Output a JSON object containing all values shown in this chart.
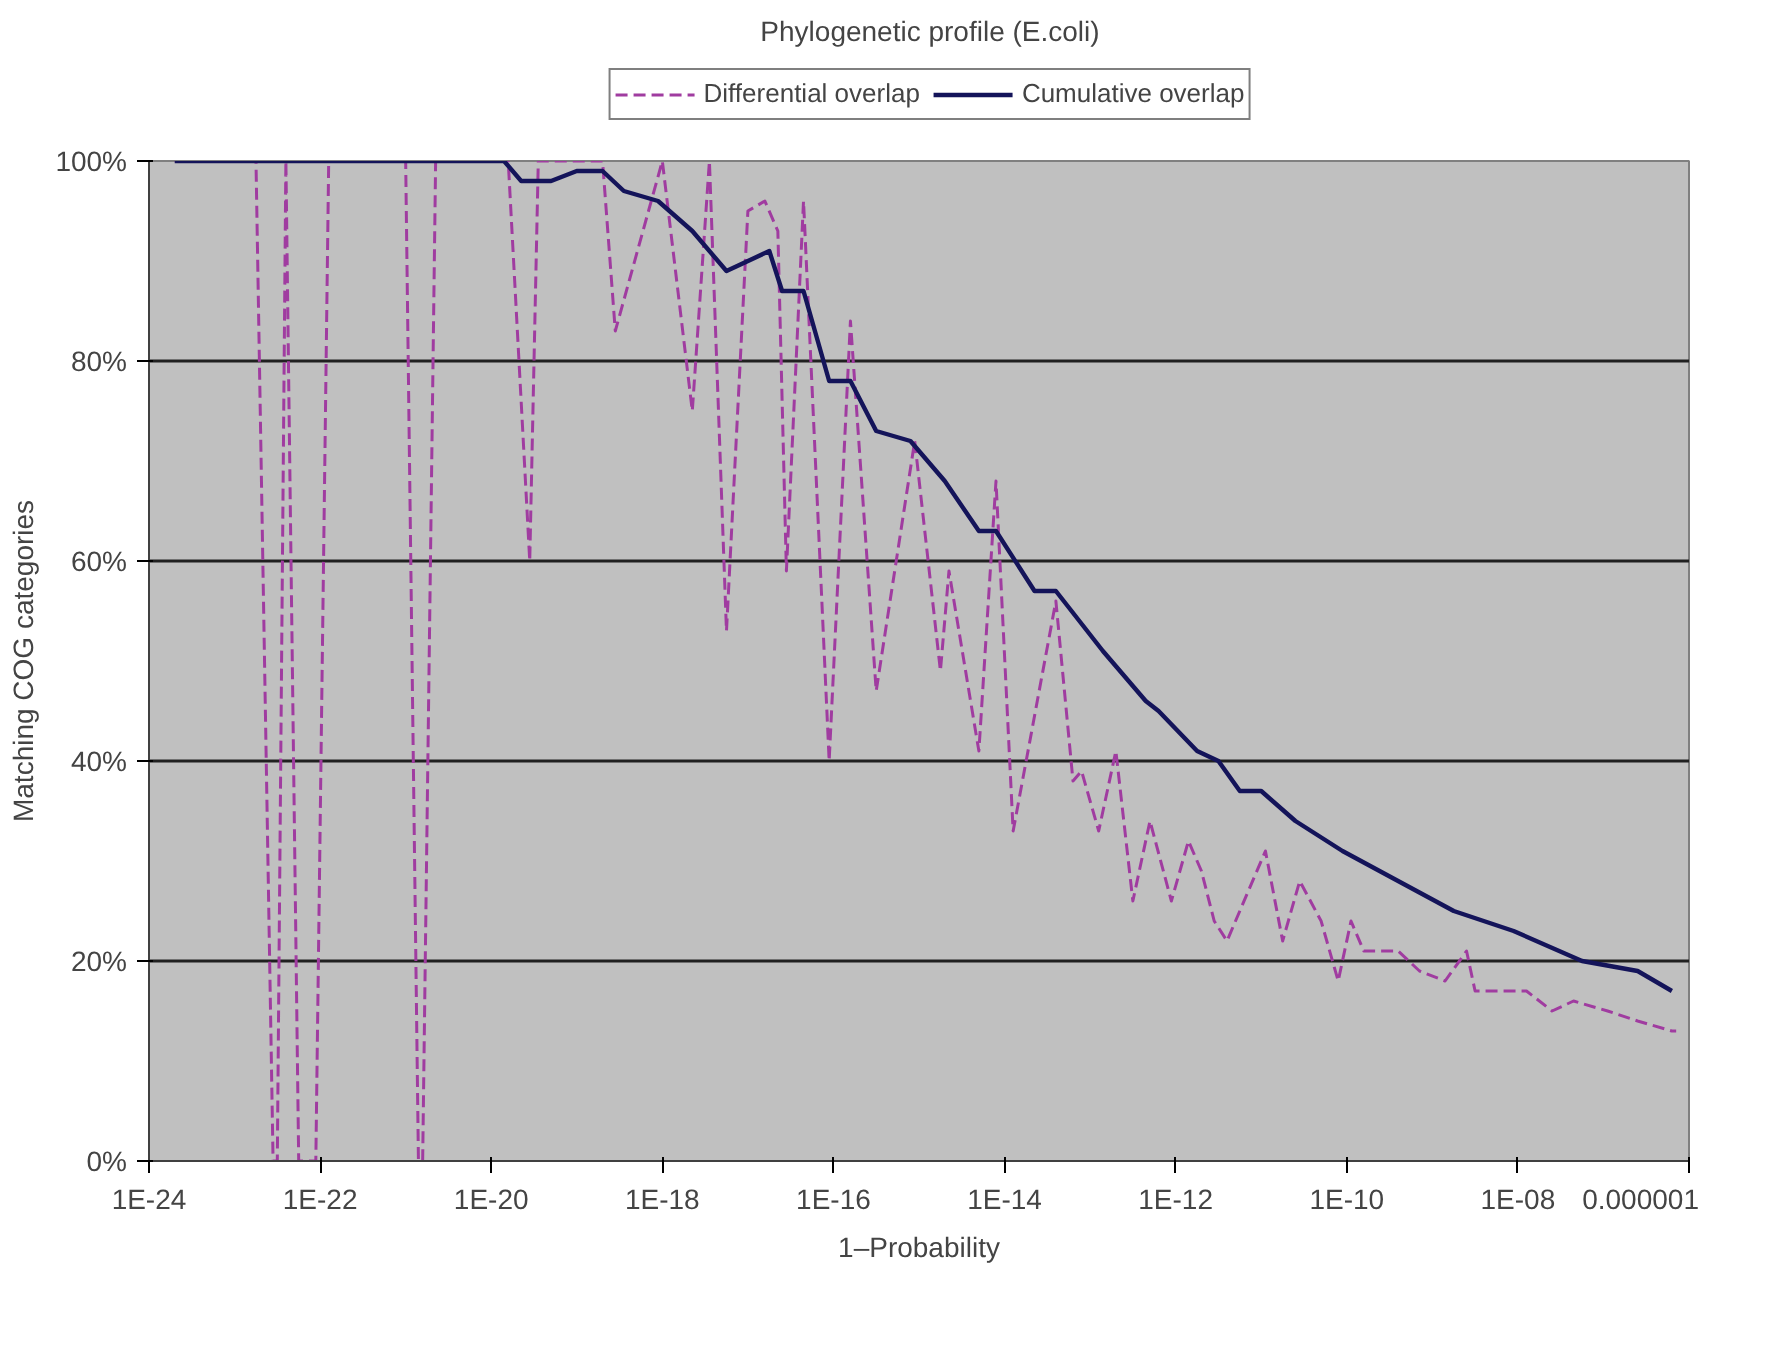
{
  "chart_data": {
    "type": "line",
    "title": "Phylogenetic profile (E.coli)",
    "xlabel": "1–Probability",
    "ylabel": "Matching COG categories",
    "log": "x",
    "xlim": [
      1e-24,
      1e-06
    ],
    "ylim": [
      0,
      100
    ],
    "xticks": [
      {
        "value": 1e-24,
        "label": "1E-24"
      },
      {
        "value": 1e-22,
        "label": "1E-22"
      },
      {
        "value": 1e-20,
        "label": "1E-20"
      },
      {
        "value": 1e-18,
        "label": "1E-18"
      },
      {
        "value": 1e-16,
        "label": "1E-16"
      },
      {
        "value": 1e-14,
        "label": "1E-14"
      },
      {
        "value": 1e-12,
        "label": "1E-12"
      },
      {
        "value": 1e-10,
        "label": "1E-10"
      },
      {
        "value": 1e-08,
        "label": "1E-08"
      },
      {
        "value": 1e-06,
        "label": "0.000001"
      }
    ],
    "yticks": [
      {
        "value": 0,
        "label": "0%"
      },
      {
        "value": 20,
        "label": "20%"
      },
      {
        "value": 40,
        "label": "40%"
      },
      {
        "value": 60,
        "label": "60%"
      },
      {
        "value": 80,
        "label": "80%"
      },
      {
        "value": 100,
        "label": "100%"
      }
    ],
    "grid": "y",
    "legend": "top",
    "series": [
      {
        "name": "Differential overlap",
        "color": "#a03ca0",
        "line_style": "dashed",
        "x": [
          2e-24,
          1.78e-23,
          2.82e-23,
          3.16e-23,
          3.98e-23,
          5.62e-23,
          8.91e-23,
          1.26e-22,
          1e-21,
          1.41e-21,
          1.58e-21,
          2.24e-21,
          1.58e-20,
          2.82e-20,
          3.55e-20,
          2e-19,
          2.82e-19,
          1e-18,
          2.24e-18,
          3.55e-18,
          5.62e-18,
          1e-17,
          1.58e-17,
          2.24e-17,
          2.82e-17,
          4.47e-17,
          8.91e-17,
          1.58e-16,
          3.16e-16,
          8.91e-16,
          1.78e-15,
          2.24e-15,
          5.01e-15,
          7.94e-15,
          1.26e-14,
          3.98e-14,
          6.31e-14,
          7.94e-14,
          1.26e-13,
          2e-13,
          3.16e-13,
          5.01e-13,
          8.91e-13,
          1.41e-12,
          2e-12,
          2.82e-12,
          3.98e-12,
          1.12e-11,
          1.78e-11,
          2.82e-11,
          5.01e-11,
          7.94e-11,
          1.12e-10,
          1.58e-10,
          3.98e-10,
          7.08e-10,
          1.41e-09,
          2.51e-09,
          3.16e-09,
          6.31e-09,
          1.26e-08,
          2.51e-08,
          4.47e-08,
          1.12e-07,
          2.51e-07,
          6.31e-07,
          7.08e-07
        ],
        "values": [
          100,
          100,
          0,
          0,
          100,
          0,
          0,
          100,
          100,
          0,
          0,
          100,
          100,
          60,
          100,
          100,
          83,
          100,
          75,
          100,
          53,
          95,
          96,
          93,
          59,
          96,
          40,
          84,
          47,
          72,
          49,
          59,
          41,
          68,
          33,
          56,
          38,
          39,
          33,
          41,
          26,
          34,
          26,
          32,
          29,
          24,
          22,
          31,
          22,
          28,
          24,
          18,
          24,
          21,
          21,
          19,
          18,
          21,
          17,
          17,
          17,
          15,
          16,
          15,
          14,
          13,
          13
        ]
      },
      {
        "name": "Cumulative overlap",
        "color": "#14145a",
        "line_style": "solid",
        "x": [
          2e-24,
          1.41e-20,
          2.24e-20,
          5.01e-20,
          1e-19,
          2e-19,
          3.55e-19,
          8.91e-19,
          2.24e-18,
          5.62e-18,
          1.78e-17,
          2.51e-17,
          4.47e-17,
          8.91e-17,
          1.58e-16,
          3.16e-16,
          7.94e-16,
          2e-15,
          5.01e-15,
          7.94e-15,
          2.24e-14,
          3.98e-14,
          1.41e-13,
          4.47e-13,
          6.31e-13,
          1.78e-12,
          3.16e-12,
          5.62e-12,
          1e-11,
          2.51e-11,
          8.91e-11,
          3.98e-10,
          1.78e-09,
          8.91e-09,
          5.62e-08,
          2.51e-07,
          6.31e-07
        ],
        "values": [
          100,
          100,
          98,
          98,
          99,
          99,
          97,
          96,
          93,
          89,
          91,
          87,
          87,
          78,
          78,
          73,
          72,
          68,
          63,
          63,
          57,
          57,
          51,
          46,
          45,
          41,
          40,
          37,
          37,
          34,
          31,
          28,
          25,
          23,
          20,
          19,
          17
        ]
      }
    ]
  }
}
